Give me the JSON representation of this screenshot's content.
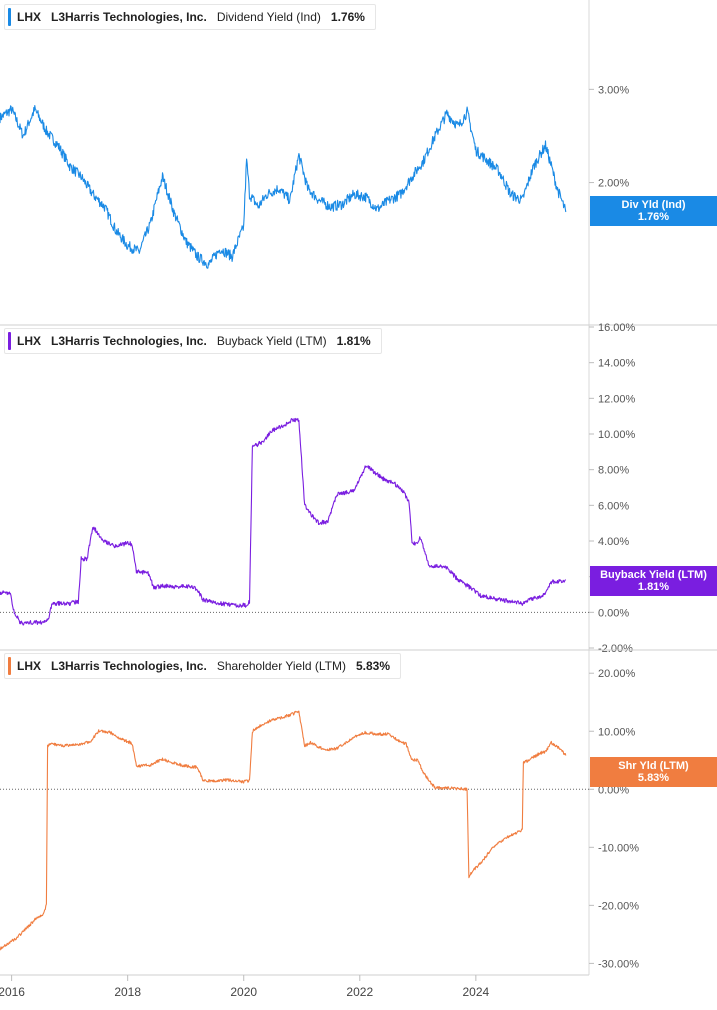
{
  "x_tick_labels": [
    "2016",
    "2018",
    "2020",
    "2022",
    "2024"
  ],
  "chart_data": [
    {
      "type": "line",
      "ticker": "LHX",
      "company": "L3Harris Technologies, Inc.",
      "metric": "Dividend Yield (Ind)",
      "last_value_label": "1.76%",
      "badge": {
        "name": "Div Yld (Ind)",
        "value": "1.76%"
      },
      "color": "#1a8ae5",
      "y_scale": "log",
      "ylim": [
        1.2,
        3.8
      ],
      "y_ticks": [
        {
          "v": 2.0,
          "label": "2.00%"
        },
        {
          "v": 3.0,
          "label": "3.00%"
        }
      ],
      "zero_line": false,
      "series": [
        {
          "x": [
            2015.8,
            2016.0,
            2016.2,
            2016.4,
            2016.6,
            2016.8,
            2017.0,
            2017.2,
            2017.4,
            2017.6,
            2017.8,
            2018.0,
            2018.2,
            2018.4,
            2018.6,
            2018.8,
            2019.0,
            2019.2,
            2019.4,
            2019.6,
            2019.8,
            2020.0,
            2020.05,
            2020.1,
            2020.25,
            2020.4,
            2020.6,
            2020.8,
            2020.95,
            2021.1,
            2021.3,
            2021.5,
            2021.7,
            2021.9,
            2022.1,
            2022.3,
            2022.5,
            2022.7,
            2022.9,
            2023.1,
            2023.3,
            2023.5,
            2023.7,
            2023.85,
            2024.0,
            2024.2,
            2024.4,
            2024.6,
            2024.8,
            2024.9,
            2025.0,
            2025.2,
            2025.4,
            2025.55
          ],
          "y": [
            2.65,
            2.75,
            2.45,
            2.75,
            2.5,
            2.35,
            2.15,
            2.05,
            1.9,
            1.8,
            1.62,
            1.52,
            1.48,
            1.68,
            2.05,
            1.75,
            1.55,
            1.45,
            1.4,
            1.5,
            1.45,
            1.65,
            2.2,
            1.9,
            1.8,
            1.9,
            1.95,
            1.85,
            2.25,
            1.95,
            1.85,
            1.8,
            1.82,
            1.9,
            1.88,
            1.78,
            1.85,
            1.9,
            2.05,
            2.2,
            2.45,
            2.7,
            2.55,
            2.72,
            2.3,
            2.2,
            2.1,
            1.9,
            1.85,
            2.0,
            2.15,
            2.35,
            1.95,
            1.76
          ]
        }
      ]
    },
    {
      "type": "line",
      "ticker": "LHX",
      "company": "L3Harris Technologies, Inc.",
      "metric": "Buyback Yield (LTM)",
      "last_value_label": "1.81%",
      "badge": {
        "name": "Buyback Yield (LTM)",
        "value": "1.81%"
      },
      "color": "#7a1ee0",
      "y_scale": "linear",
      "ylim": [
        -2,
        16
      ],
      "y_ticks": [
        {
          "v": -2,
          "label": "-2.00%"
        },
        {
          "v": 0,
          "label": "0.00%"
        },
        {
          "v": 2,
          "label": "2.00%"
        },
        {
          "v": 4,
          "label": "4.00%"
        },
        {
          "v": 6,
          "label": "6.00%"
        },
        {
          "v": 8,
          "label": "8.00%"
        },
        {
          "v": 10,
          "label": "10.00%"
        },
        {
          "v": 12,
          "label": "12.00%"
        },
        {
          "v": 14,
          "label": "14.00%"
        },
        {
          "v": 16,
          "label": "16.00%"
        }
      ],
      "zero_line": true,
      "series": [
        {
          "x": [
            2015.8,
            2015.98,
            2016.02,
            2016.15,
            2016.5,
            2016.62,
            2016.7,
            2017.0,
            2017.15,
            2017.2,
            2017.3,
            2017.4,
            2017.6,
            2017.8,
            2018.0,
            2018.08,
            2018.15,
            2018.35,
            2018.45,
            2018.7,
            2018.8,
            2019.0,
            2019.2,
            2019.3,
            2019.6,
            2019.9,
            2020.0,
            2020.05,
            2020.1,
            2020.15,
            2020.3,
            2020.5,
            2020.7,
            2020.85,
            2020.95,
            2021.05,
            2021.1,
            2021.15,
            2021.3,
            2021.45,
            2021.6,
            2021.9,
            2022.1,
            2022.2,
            2022.4,
            2022.6,
            2022.7,
            2022.85,
            2022.9,
            2022.95,
            2023.05,
            2023.2,
            2023.3,
            2023.5,
            2023.7,
            2023.85,
            2024.1,
            2024.3,
            2024.6,
            2024.8,
            2025.0,
            2025.2,
            2025.3,
            2025.55
          ],
          "y": [
            1.1,
            1.1,
            0.2,
            -0.6,
            -0.55,
            -0.5,
            0.5,
            0.5,
            0.6,
            3.0,
            3.0,
            4.8,
            4.0,
            3.7,
            3.9,
            3.8,
            2.3,
            2.2,
            1.4,
            1.5,
            1.4,
            1.5,
            1.3,
            0.7,
            0.5,
            0.4,
            0.4,
            0.4,
            0.6,
            9.3,
            9.5,
            10.2,
            10.5,
            10.8,
            10.8,
            6.0,
            5.8,
            5.5,
            5.0,
            5.1,
            6.6,
            6.8,
            8.2,
            8.0,
            7.5,
            7.2,
            7.0,
            6.2,
            4.0,
            3.8,
            4.2,
            2.5,
            2.6,
            2.5,
            1.8,
            1.5,
            0.9,
            0.8,
            0.6,
            0.5,
            0.8,
            1.0,
            1.7,
            1.81
          ]
        }
      ]
    },
    {
      "type": "line",
      "ticker": "LHX",
      "company": "L3Harris Technologies, Inc.",
      "metric": "Shareholder Yield (LTM)",
      "last_value_label": "5.83%",
      "badge": {
        "name": "Shr Yld (LTM)",
        "value": "5.83%"
      },
      "color": "#f07d40",
      "y_scale": "linear",
      "ylim": [
        -32,
        24
      ],
      "y_ticks": [
        {
          "v": -30,
          "label": "-30.00%"
        },
        {
          "v": -20,
          "label": "-20.00%"
        },
        {
          "v": -10,
          "label": "-10.00%"
        },
        {
          "v": 0,
          "label": "0.00%"
        },
        {
          "v": 10,
          "label": "10.00%"
        },
        {
          "v": 20,
          "label": "20.00%"
        }
      ],
      "zero_line": true,
      "series": [
        {
          "x": [
            2015.8,
            2015.95,
            2016.1,
            2016.2,
            2016.3,
            2016.45,
            2016.55,
            2016.6,
            2016.62,
            2016.7,
            2016.85,
            2017.0,
            2017.2,
            2017.35,
            2017.5,
            2017.7,
            2017.9,
            2018.0,
            2018.08,
            2018.15,
            2018.4,
            2018.6,
            2018.8,
            2019.0,
            2019.2,
            2019.3,
            2019.5,
            2019.7,
            2019.9,
            2020.0,
            2020.1,
            2020.15,
            2020.3,
            2020.5,
            2020.7,
            2020.85,
            2020.95,
            2021.05,
            2021.15,
            2021.4,
            2021.6,
            2021.9,
            2022.1,
            2022.3,
            2022.5,
            2022.65,
            2022.8,
            2022.9,
            2023.0,
            2023.1,
            2023.3,
            2023.5,
            2023.7,
            2023.85,
            2023.88,
            2023.95,
            2024.1,
            2024.3,
            2024.5,
            2024.7,
            2024.8,
            2024.82,
            2024.9,
            2025.1,
            2025.2,
            2025.3,
            2025.45,
            2025.55
          ],
          "y": [
            -27.5,
            -26.5,
            -25.5,
            -24.5,
            -23.5,
            -22.0,
            -21.5,
            -20.0,
            7.5,
            7.8,
            7.6,
            7.5,
            7.8,
            8.2,
            10.0,
            9.8,
            8.6,
            8.2,
            7.9,
            4.0,
            4.2,
            5.2,
            4.5,
            4.0,
            3.8,
            1.5,
            1.4,
            1.6,
            1.5,
            1.3,
            1.5,
            10.0,
            11.0,
            12.0,
            12.5,
            13.0,
            13.5,
            7.5,
            8.0,
            6.8,
            7.0,
            9.0,
            9.8,
            9.5,
            9.5,
            8.5,
            7.8,
            5.0,
            5.0,
            2.8,
            0.2,
            0.2,
            0.1,
            0.0,
            -15.0,
            -14.0,
            -12.5,
            -10.0,
            -8.5,
            -7.5,
            -7.0,
            4.5,
            5.0,
            6.2,
            6.5,
            8.0,
            7.0,
            5.83
          ]
        }
      ]
    }
  ]
}
